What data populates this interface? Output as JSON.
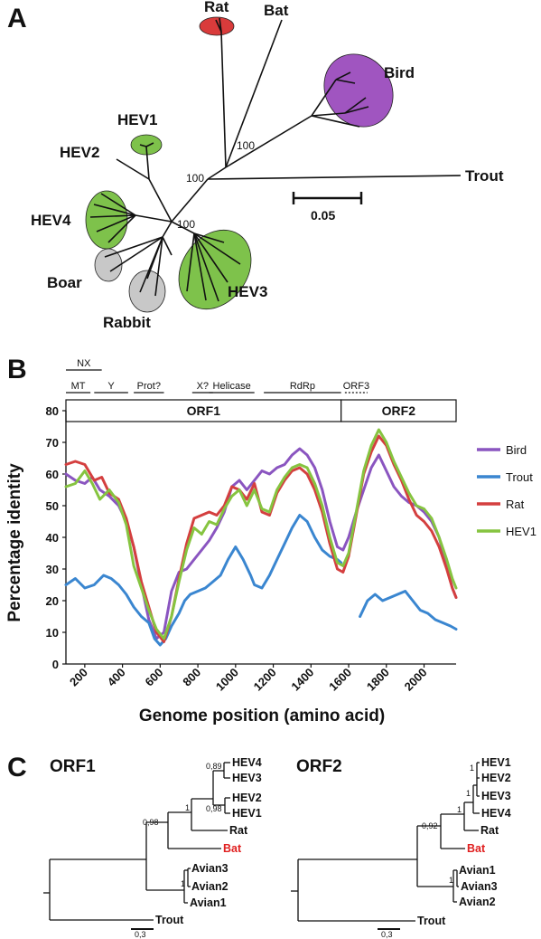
{
  "panel_a": {
    "letter": "A",
    "tips": {
      "rat": "Rat",
      "bat": "Bat",
      "bird": "Bird",
      "hev1": "HEV1",
      "hev2": "HEV2",
      "hev4": "HEV4",
      "trout": "Trout",
      "boar": "Boar",
      "rabbit": "Rabbit",
      "hev3": "HEV3"
    },
    "bootstrap": [
      "100",
      "100",
      "100"
    ],
    "scale_label": "0.05",
    "colors": {
      "rat": "#d93b3b",
      "bird": "#a055c0",
      "hev": "#7ec24b",
      "grey": "#c8c8c8"
    }
  },
  "chart_data": {
    "type": "line",
    "letter": "B",
    "ylabel": "Percentage identity",
    "xlabel": "Genome position (amino acid)",
    "ylim": [
      0,
      80
    ],
    "yticks": [
      0,
      10,
      20,
      30,
      40,
      50,
      60,
      70,
      80
    ],
    "xlim": [
      100,
      2170
    ],
    "xticks": [
      200,
      400,
      600,
      800,
      1000,
      1200,
      1400,
      1600,
      1800,
      2000
    ],
    "grid": false,
    "legend_position": "right",
    "orfs": [
      {
        "label": "ORF1",
        "start": 100,
        "end": 1560
      },
      {
        "label": "ORF2",
        "start": 1560,
        "end": 2170
      }
    ],
    "domains": [
      {
        "label": "NX",
        "start": 100,
        "end": 290,
        "row": "upper"
      },
      {
        "label": "MT",
        "start": 100,
        "end": 230,
        "row": "lower"
      },
      {
        "label": "Y",
        "start": 250,
        "end": 430,
        "row": "lower"
      },
      {
        "label": "Prot?",
        "start": 460,
        "end": 620,
        "row": "lower"
      },
      {
        "label": "X?",
        "start": 770,
        "end": 880,
        "row": "lower"
      },
      {
        "label": "Helicase",
        "start": 860,
        "end": 1100,
        "row": "lower"
      },
      {
        "label": "RdRp",
        "start": 1150,
        "end": 1560,
        "row": "lower"
      },
      {
        "label": "ORF3",
        "start": 1580,
        "end": 1700,
        "row": "lower"
      }
    ],
    "series": [
      {
        "name": "Bird",
        "color": "#8a55c0",
        "segments": [
          [
            [
              100,
              60
            ],
            [
              150,
              58
            ],
            [
              200,
              57
            ],
            [
              240,
              59
            ],
            [
              280,
              55
            ],
            [
              330,
              53
            ],
            [
              380,
              50
            ],
            [
              420,
              45
            ],
            [
              460,
              37
            ],
            [
              500,
              25
            ],
            [
              540,
              14
            ],
            [
              580,
              8
            ],
            [
              620,
              10
            ],
            [
              660,
              23
            ],
            [
              700,
              29
            ],
            [
              740,
              30
            ],
            [
              780,
              33
            ],
            [
              820,
              36
            ],
            [
              860,
              39
            ],
            [
              900,
              43
            ],
            [
              940,
              48
            ],
            [
              980,
              56
            ],
            [
              1020,
              58
            ],
            [
              1060,
              55
            ],
            [
              1100,
              58
            ],
            [
              1140,
              61
            ],
            [
              1180,
              60
            ],
            [
              1220,
              62
            ],
            [
              1260,
              63
            ],
            [
              1300,
              66
            ],
            [
              1340,
              68
            ],
            [
              1380,
              66
            ],
            [
              1420,
              62
            ],
            [
              1460,
              55
            ],
            [
              1500,
              45
            ],
            [
              1540,
              37
            ],
            [
              1570,
              36
            ],
            [
              1600,
              40
            ],
            [
              1640,
              48
            ],
            [
              1680,
              55
            ],
            [
              1720,
              62
            ],
            [
              1760,
              66
            ],
            [
              1800,
              61
            ],
            [
              1840,
              56
            ],
            [
              1880,
              53
            ],
            [
              1920,
              51
            ],
            [
              1960,
              50
            ],
            [
              2000,
              48
            ],
            [
              2040,
              45
            ],
            [
              2080,
              40
            ],
            [
              2120,
              31
            ],
            [
              2150,
              24
            ],
            [
              2170,
              21
            ]
          ]
        ]
      },
      {
        "name": "Trout",
        "color": "#3a86d0",
        "segments": [
          [
            [
              100,
              25
            ],
            [
              150,
              27
            ],
            [
              200,
              24
            ],
            [
              250,
              25
            ],
            [
              300,
              28
            ],
            [
              340,
              27
            ],
            [
              380,
              25
            ],
            [
              420,
              22
            ],
            [
              460,
              18
            ],
            [
              500,
              15
            ],
            [
              540,
              13
            ],
            [
              570,
              8
            ],
            [
              600,
              6
            ],
            [
              630,
              8
            ],
            [
              660,
              12
            ],
            [
              700,
              16
            ],
            [
              730,
              20
            ],
            [
              760,
              22
            ],
            [
              800,
              23
            ],
            [
              840,
              24
            ],
            [
              880,
              26
            ],
            [
              920,
              28
            ],
            [
              960,
              33
            ],
            [
              1000,
              37
            ],
            [
              1040,
              33
            ],
            [
              1080,
              28
            ],
            [
              1100,
              25
            ],
            [
              1140,
              24
            ],
            [
              1180,
              28
            ],
            [
              1220,
              33
            ],
            [
              1260,
              38
            ],
            [
              1300,
              43
            ],
            [
              1340,
              47
            ],
            [
              1380,
              45
            ],
            [
              1420,
              40
            ],
            [
              1460,
              36
            ],
            [
              1500,
              34
            ],
            [
              1540,
              33
            ],
            [
              1560,
              32
            ]
          ],
          [
            [
              1660,
              15
            ],
            [
              1700,
              20
            ],
            [
              1740,
              22
            ],
            [
              1780,
              20
            ],
            [
              1820,
              21
            ],
            [
              1860,
              22
            ],
            [
              1900,
              23
            ],
            [
              1940,
              20
            ],
            [
              1980,
              17
            ],
            [
              2020,
              16
            ],
            [
              2060,
              14
            ],
            [
              2100,
              13
            ],
            [
              2140,
              12
            ],
            [
              2170,
              11
            ]
          ]
        ]
      },
      {
        "name": "Rat",
        "color": "#d43f3f",
        "segments": [
          [
            [
              100,
              63
            ],
            [
              150,
              64
            ],
            [
              200,
              63
            ],
            [
              250,
              58
            ],
            [
              290,
              59
            ],
            [
              330,
              54
            ],
            [
              380,
              52
            ],
            [
              420,
              46
            ],
            [
              460,
              37
            ],
            [
              500,
              26
            ],
            [
              540,
              18
            ],
            [
              580,
              10
            ],
            [
              620,
              7
            ],
            [
              660,
              15
            ],
            [
              700,
              27
            ],
            [
              740,
              38
            ],
            [
              780,
              46
            ],
            [
              820,
              47
            ],
            [
              860,
              48
            ],
            [
              900,
              47
            ],
            [
              940,
              50
            ],
            [
              980,
              56
            ],
            [
              1020,
              55
            ],
            [
              1060,
              52
            ],
            [
              1100,
              57
            ],
            [
              1140,
              48
            ],
            [
              1180,
              47
            ],
            [
              1220,
              54
            ],
            [
              1260,
              58
            ],
            [
              1300,
              61
            ],
            [
              1340,
              62
            ],
            [
              1380,
              60
            ],
            [
              1420,
              55
            ],
            [
              1460,
              48
            ],
            [
              1500,
              38
            ],
            [
              1540,
              30
            ],
            [
              1570,
              29
            ],
            [
              1600,
              34
            ],
            [
              1640,
              47
            ],
            [
              1680,
              60
            ],
            [
              1720,
              67
            ],
            [
              1760,
              72
            ],
            [
              1800,
              69
            ],
            [
              1840,
              63
            ],
            [
              1880,
              58
            ],
            [
              1920,
              52
            ],
            [
              1960,
              47
            ],
            [
              2000,
              45
            ],
            [
              2040,
              42
            ],
            [
              2080,
              37
            ],
            [
              2120,
              30
            ],
            [
              2150,
              24
            ],
            [
              2170,
              21
            ]
          ]
        ]
      },
      {
        "name": "HEV1",
        "color": "#86c440",
        "segments": [
          [
            [
              100,
              56
            ],
            [
              150,
              57
            ],
            [
              200,
              61
            ],
            [
              240,
              57
            ],
            [
              280,
              52
            ],
            [
              330,
              55
            ],
            [
              380,
              51
            ],
            [
              420,
              44
            ],
            [
              460,
              31
            ],
            [
              500,
              24
            ],
            [
              540,
              17
            ],
            [
              580,
              11
            ],
            [
              620,
              8
            ],
            [
              660,
              15
            ],
            [
              700,
              26
            ],
            [
              740,
              36
            ],
            [
              780,
              43
            ],
            [
              820,
              41
            ],
            [
              860,
              45
            ],
            [
              900,
              44
            ],
            [
              940,
              49
            ],
            [
              980,
              53
            ],
            [
              1020,
              55
            ],
            [
              1060,
              50
            ],
            [
              1100,
              55
            ],
            [
              1140,
              49
            ],
            [
              1180,
              48
            ],
            [
              1220,
              55
            ],
            [
              1260,
              59
            ],
            [
              1300,
              62
            ],
            [
              1340,
              63
            ],
            [
              1380,
              62
            ],
            [
              1420,
              57
            ],
            [
              1460,
              50
            ],
            [
              1500,
              40
            ],
            [
              1540,
              32
            ],
            [
              1570,
              31
            ],
            [
              1600,
              35
            ],
            [
              1640,
              48
            ],
            [
              1680,
              61
            ],
            [
              1720,
              69
            ],
            [
              1760,
              74
            ],
            [
              1800,
              70
            ],
            [
              1840,
              64
            ],
            [
              1880,
              59
            ],
            [
              1920,
              54
            ],
            [
              1960,
              50
            ],
            [
              2000,
              49
            ],
            [
              2040,
              46
            ],
            [
              2080,
              40
            ],
            [
              2120,
              33
            ],
            [
              2150,
              27
            ],
            [
              2170,
              24
            ]
          ]
        ]
      }
    ]
  },
  "panel_c": {
    "letter": "C",
    "orf1": {
      "title": "ORF1",
      "tips": [
        "HEV4",
        "HEV3",
        "HEV2",
        "HEV1",
        "Rat",
        "Bat",
        "Avian3",
        "Avian2",
        "Avian1",
        "Trout"
      ],
      "support": [
        "0,89",
        "0,98",
        "1",
        "0,98",
        "1"
      ],
      "scale": "0,3"
    },
    "orf2": {
      "title": "ORF2",
      "tips": [
        "HEV1",
        "HEV2",
        "HEV3",
        "HEV4",
        "Rat",
        "Bat",
        "Avian1",
        "Avian3",
        "Avian2",
        "Trout"
      ],
      "support": [
        "1",
        "1",
        "1",
        "0,92",
        "1"
      ],
      "scale": "0,3"
    },
    "highlight_color": "#e02020"
  }
}
